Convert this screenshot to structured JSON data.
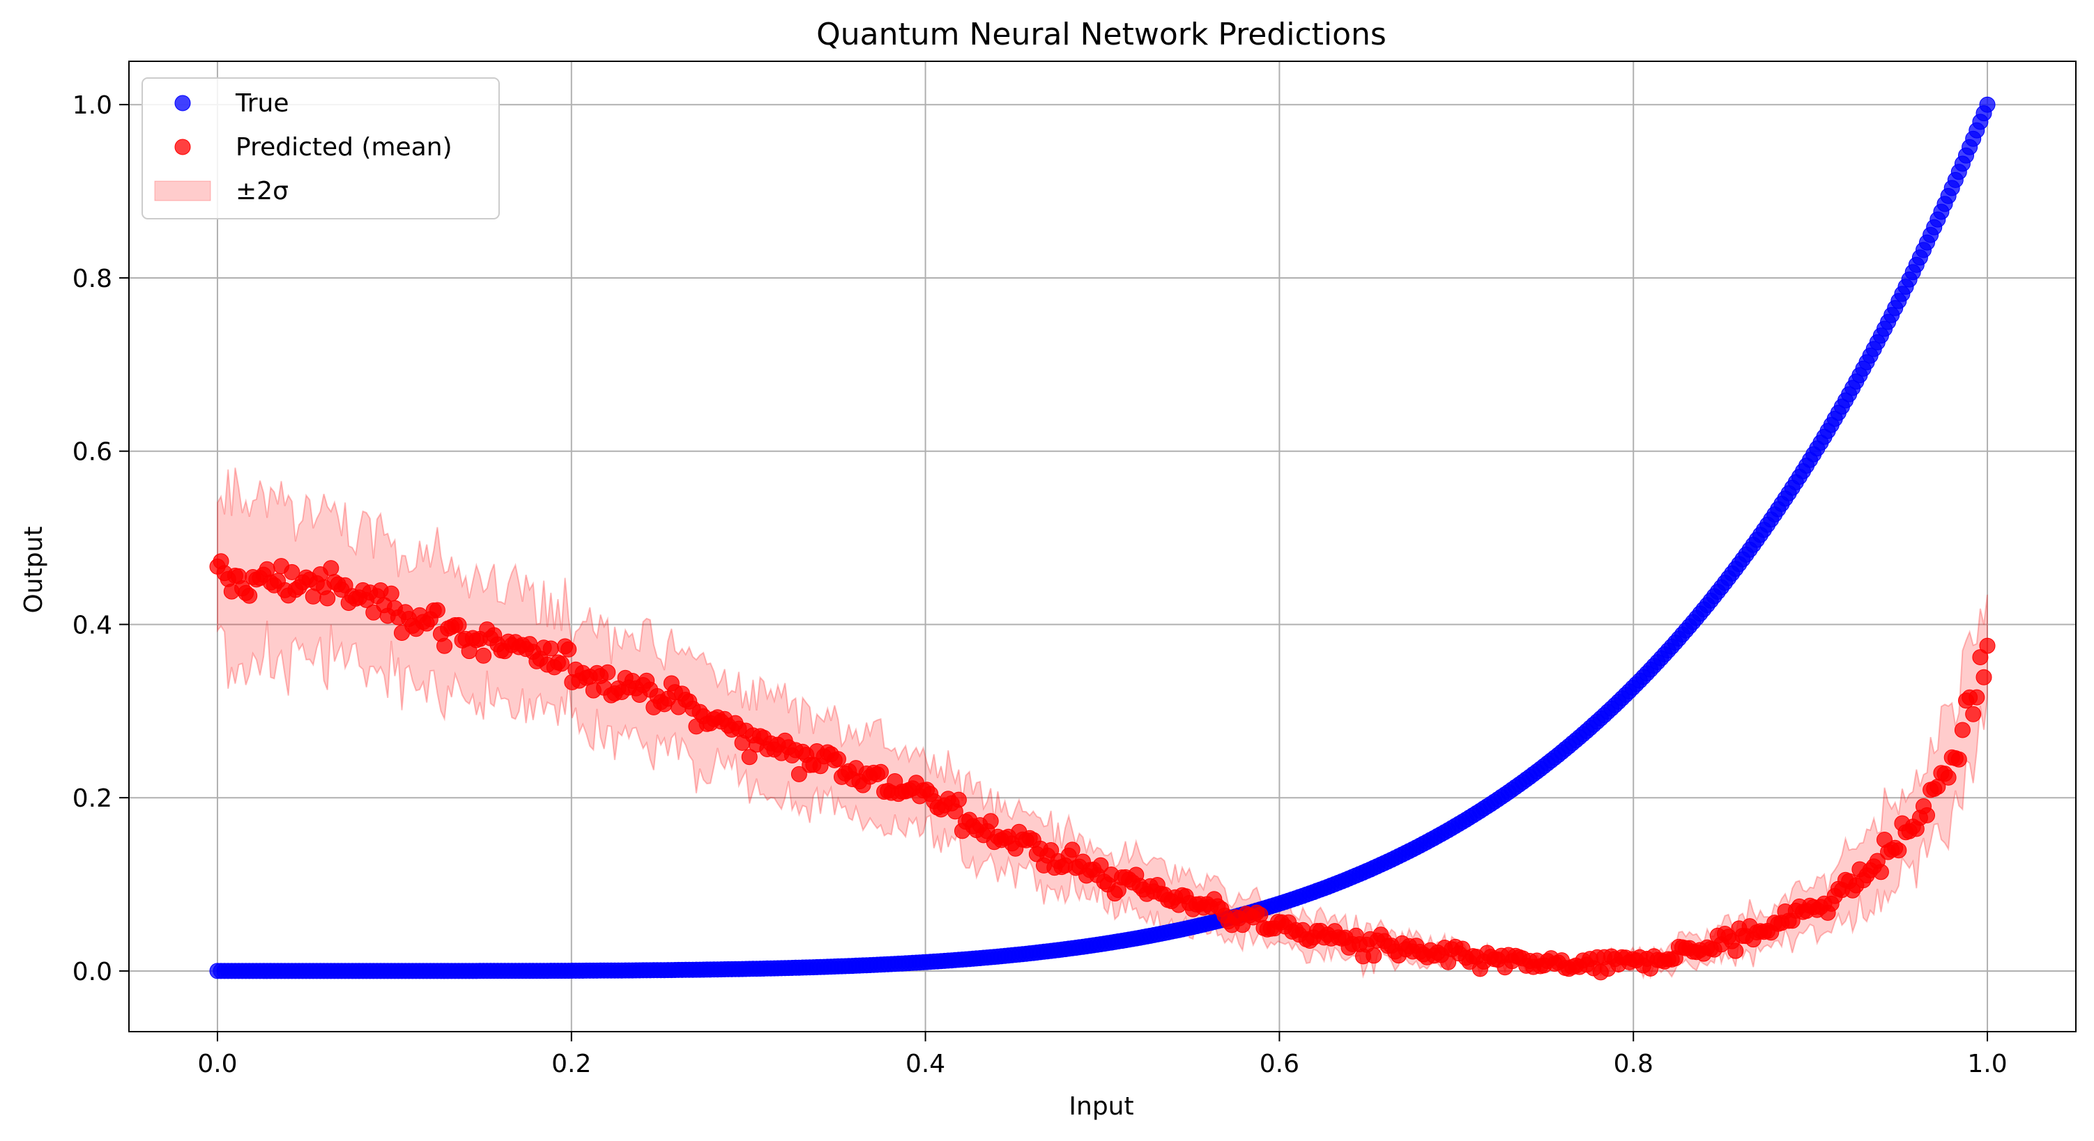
{
  "chart_data": {
    "type": "scatter",
    "title": "Quantum Neural Network Predictions",
    "xlabel": "Input",
    "ylabel": "Output",
    "xlim": [
      -0.05,
      1.05
    ],
    "ylim": [
      -0.07,
      1.05
    ],
    "xticks": [
      0.0,
      0.2,
      0.4,
      0.6,
      0.8,
      1.0
    ],
    "xtick_labels": [
      "0.0",
      "0.2",
      "0.4",
      "0.6",
      "0.8",
      "1.0"
    ],
    "yticks": [
      0.0,
      0.2,
      0.4,
      0.6,
      0.8,
      1.0
    ],
    "ytick_labels": [
      "0.0",
      "0.2",
      "0.4",
      "0.6",
      "0.8",
      "1.0"
    ],
    "grid": true,
    "legend_position": "top-left",
    "series": [
      {
        "name": "True",
        "color": "#0000ff",
        "marker": "circle",
        "formula": "y = x^5",
        "x_start": 0.0,
        "x_end": 1.0,
        "n_points": 500
      },
      {
        "name": "Predicted (mean)",
        "color": "#ff0000",
        "marker": "circle",
        "x": [
          0.0,
          0.05,
          0.1,
          0.15,
          0.2,
          0.25,
          0.3,
          0.35,
          0.4,
          0.45,
          0.5,
          0.55,
          0.6,
          0.65,
          0.7,
          0.75,
          0.78,
          0.8,
          0.85,
          0.9,
          0.93,
          0.96,
          0.98,
          1.0
        ],
        "y": [
          0.45,
          0.45,
          0.42,
          0.38,
          0.35,
          0.32,
          0.27,
          0.24,
          0.2,
          0.15,
          0.11,
          0.08,
          0.05,
          0.03,
          0.015,
          0.007,
          0.004,
          0.01,
          0.03,
          0.07,
          0.11,
          0.17,
          0.24,
          0.36
        ],
        "noise": 0.025
      },
      {
        "name": "±2σ",
        "color": "#ff0000",
        "type": "band",
        "band_halfwidth": [
          0.1,
          0.08,
          0.07,
          0.07,
          0.06,
          0.06,
          0.05,
          0.05,
          0.04,
          0.04,
          0.03,
          0.03,
          0.02,
          0.02,
          0.01,
          0.005,
          0.005,
          0.01,
          0.02,
          0.03,
          0.04,
          0.05,
          0.06,
          0.08
        ]
      }
    ]
  }
}
